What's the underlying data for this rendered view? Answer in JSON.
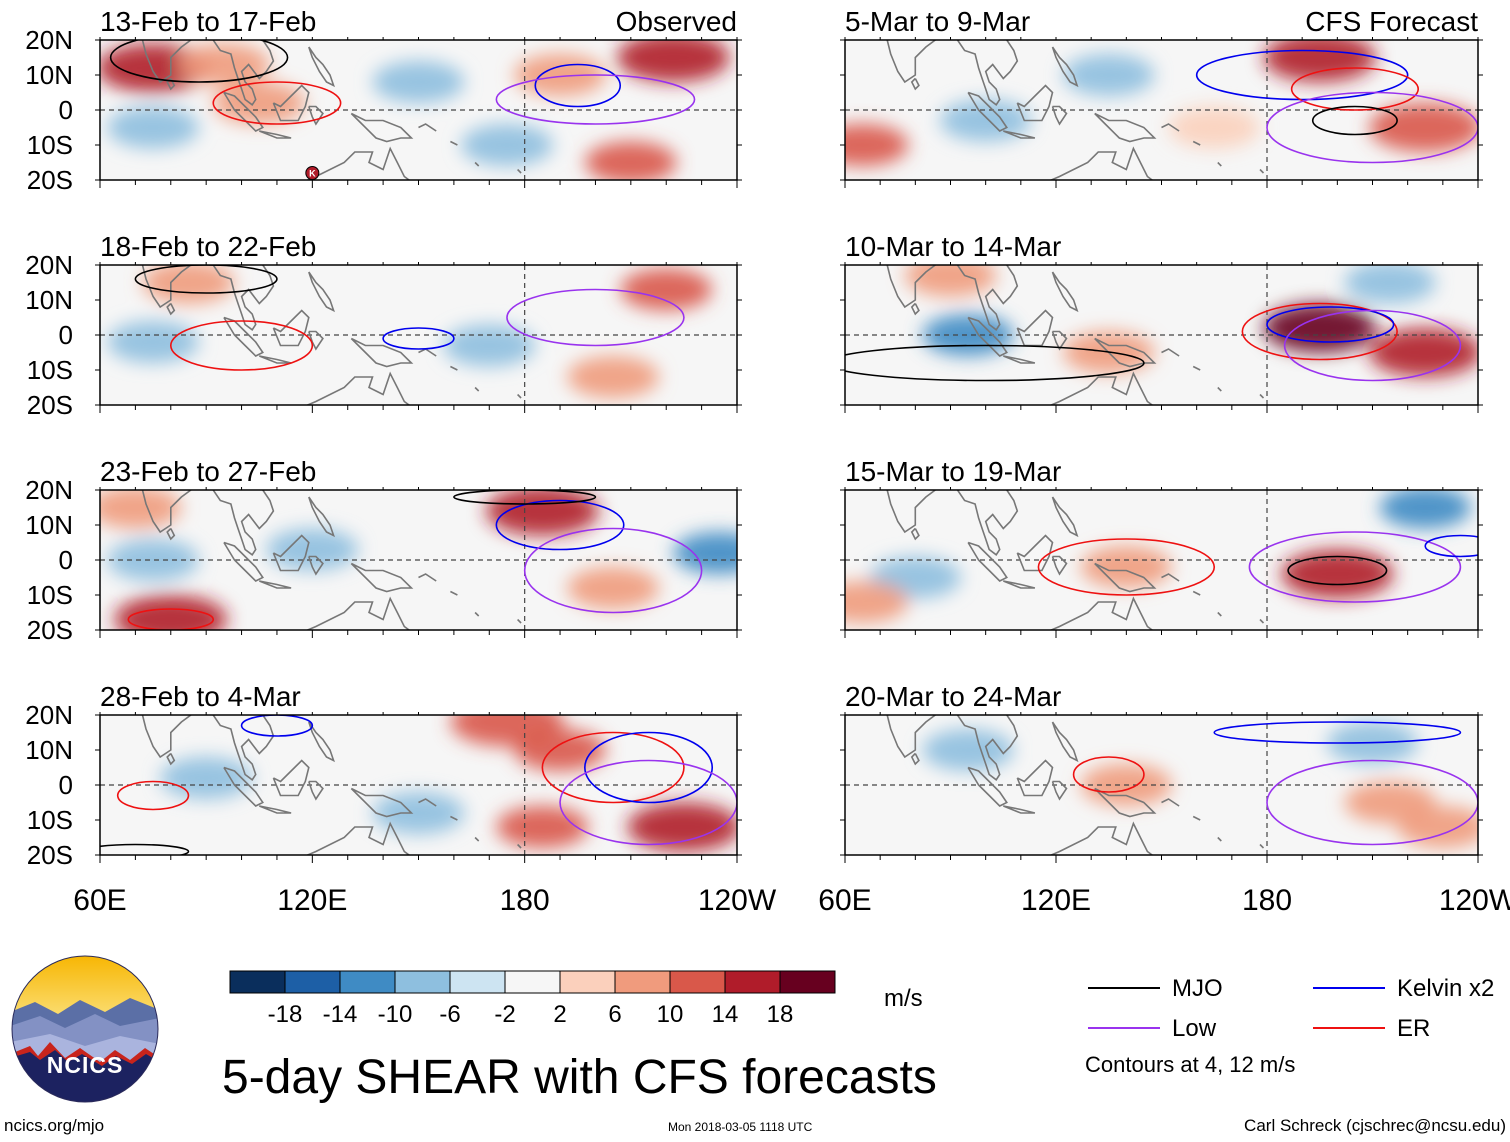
{
  "chart_data": [
    {
      "type": "heatmap",
      "panel": "observed-1",
      "title": "13-Feb to 17-Feb",
      "label": "Observed",
      "xlim": [
        "60E",
        "120W"
      ],
      "ylim": [
        "20S",
        "20N"
      ],
      "anomaly_blobs": [
        {
          "lon": 75,
          "lat": 12,
          "v": 16
        },
        {
          "lon": 95,
          "lat": 13,
          "v": 10
        },
        {
          "lon": 105,
          "lat": 2,
          "v": 10
        },
        {
          "lon": 190,
          "lat": 10,
          "v": 10
        },
        {
          "lon": 222,
          "lat": 15,
          "v": 18
        },
        {
          "lon": 75,
          "lat": -5,
          "v": -8
        },
        {
          "lon": 150,
          "lat": 8,
          "v": -6
        },
        {
          "lon": 175,
          "lat": -10,
          "v": -6
        },
        {
          "lon": 210,
          "lat": -15,
          "v": 12
        }
      ],
      "contours": [
        {
          "type": "MJO",
          "center": [
            88,
            15
          ],
          "r": [
            25,
            7
          ]
        },
        {
          "type": "ER",
          "center": [
            110,
            2
          ],
          "r": [
            18,
            6
          ]
        },
        {
          "type": "Kelvin",
          "center": [
            195,
            7
          ],
          "r": [
            12,
            6
          ]
        },
        {
          "type": "Low",
          "center": [
            200,
            3
          ],
          "r": [
            28,
            7
          ]
        }
      ]
    },
    {
      "type": "heatmap",
      "panel": "forecast-1",
      "title": "5-Mar to 9-Mar",
      "label": "CFS Forecast",
      "xlim": [
        "60E",
        "120W"
      ],
      "ylim": [
        "20S",
        "20N"
      ],
      "anomaly_blobs": [
        {
          "lon": 195,
          "lat": 15,
          "v": 16
        },
        {
          "lon": 225,
          "lat": -5,
          "v": 14
        },
        {
          "lon": 65,
          "lat": -10,
          "v": 12
        },
        {
          "lon": 135,
          "lat": 10,
          "v": -6
        },
        {
          "lon": 100,
          "lat": -3,
          "v": -8
        },
        {
          "lon": 165,
          "lat": -5,
          "v": 6
        }
      ],
      "contours": [
        {
          "type": "Kelvin",
          "center": [
            190,
            10
          ],
          "r": [
            30,
            7
          ]
        },
        {
          "type": "ER",
          "center": [
            205,
            6
          ],
          "r": [
            18,
            6
          ]
        },
        {
          "type": "MJO",
          "center": [
            205,
            -3
          ],
          "r": [
            12,
            4
          ]
        },
        {
          "type": "Low",
          "center": [
            210,
            -5
          ],
          "r": [
            30,
            10
          ]
        }
      ]
    },
    {
      "type": "heatmap",
      "panel": "observed-2",
      "title": "18-Feb to 22-Feb",
      "label": "",
      "xlim": [
        "60E",
        "120W"
      ],
      "ylim": [
        "20S",
        "20N"
      ],
      "anomaly_blobs": [
        {
          "lon": 85,
          "lat": 15,
          "v": 10
        },
        {
          "lon": 220,
          "lat": 13,
          "v": 12
        },
        {
          "lon": 75,
          "lat": -2,
          "v": -8
        },
        {
          "lon": 170,
          "lat": -3,
          "v": -8
        },
        {
          "lon": 205,
          "lat": -12,
          "v": 8
        }
      ],
      "contours": [
        {
          "type": "MJO",
          "center": [
            90,
            16
          ],
          "r": [
            20,
            4
          ]
        },
        {
          "type": "ER",
          "center": [
            100,
            -3
          ],
          "r": [
            20,
            7
          ]
        },
        {
          "type": "Kelvin",
          "center": [
            150,
            -1
          ],
          "r": [
            10,
            3
          ]
        },
        {
          "type": "Low",
          "center": [
            200,
            5
          ],
          "r": [
            25,
            8
          ]
        }
      ]
    },
    {
      "type": "heatmap",
      "panel": "forecast-2",
      "title": "10-Mar to 14-Mar",
      "label": "",
      "xlim": [
        "60E",
        "120W"
      ],
      "ylim": [
        "20S",
        "20N"
      ],
      "anomaly_blobs": [
        {
          "lon": 195,
          "lat": 2,
          "v": 20
        },
        {
          "lon": 225,
          "lat": -5,
          "v": 16
        },
        {
          "lon": 90,
          "lat": 17,
          "v": 10
        },
        {
          "lon": 95,
          "lat": 0,
          "v": -10
        },
        {
          "lon": 135,
          "lat": -5,
          "v": 8
        },
        {
          "lon": 215,
          "lat": 15,
          "v": -6
        }
      ],
      "contours": [
        {
          "type": "ER",
          "center": [
            195,
            1
          ],
          "r": [
            22,
            8
          ]
        },
        {
          "type": "Kelvin",
          "center": [
            198,
            3
          ],
          "r": [
            18,
            5
          ]
        },
        {
          "type": "MJO",
          "center": [
            100,
            -8
          ],
          "r": [
            45,
            5
          ]
        },
        {
          "type": "Low",
          "center": [
            210,
            -3
          ],
          "r": [
            25,
            10
          ]
        }
      ]
    },
    {
      "type": "heatmap",
      "panel": "observed-3",
      "title": "23-Feb to 27-Feb",
      "label": "",
      "xlim": [
        "60E",
        "120W"
      ],
      "ylim": [
        "20S",
        "20N"
      ],
      "anomaly_blobs": [
        {
          "lon": 185,
          "lat": 14,
          "v": 18
        },
        {
          "lon": 70,
          "lat": 15,
          "v": 10
        },
        {
          "lon": 80,
          "lat": -17,
          "v": 16
        },
        {
          "lon": 205,
          "lat": -8,
          "v": 10
        },
        {
          "lon": 75,
          "lat": 0,
          "v": -8
        },
        {
          "lon": 120,
          "lat": 3,
          "v": -6
        },
        {
          "lon": 235,
          "lat": 2,
          "v": -12
        }
      ],
      "contours": [
        {
          "type": "Kelvin",
          "center": [
            190,
            10
          ],
          "r": [
            18,
            7
          ]
        },
        {
          "type": "ER",
          "center": [
            80,
            -17
          ],
          "r": [
            12,
            3
          ]
        },
        {
          "type": "MJO",
          "center": [
            180,
            18
          ],
          "r": [
            20,
            2
          ]
        },
        {
          "type": "Low",
          "center": [
            205,
            -3
          ],
          "r": [
            25,
            12
          ]
        }
      ]
    },
    {
      "type": "heatmap",
      "panel": "forecast-3",
      "title": "15-Mar to 19-Mar",
      "label": "",
      "xlim": [
        "60E",
        "120W"
      ],
      "ylim": [
        "20S",
        "20N"
      ],
      "anomaly_blobs": [
        {
          "lon": 200,
          "lat": -4,
          "v": 16
        },
        {
          "lon": 140,
          "lat": -2,
          "v": 8
        },
        {
          "lon": 225,
          "lat": 15,
          "v": -10
        },
        {
          "lon": 80,
          "lat": -5,
          "v": -6
        },
        {
          "lon": 65,
          "lat": -12,
          "v": 10
        }
      ],
      "contours": [
        {
          "type": "ER",
          "center": [
            140,
            -2
          ],
          "r": [
            25,
            8
          ]
        },
        {
          "type": "MJO",
          "center": [
            200,
            -3
          ],
          "r": [
            14,
            4
          ]
        },
        {
          "type": "Low",
          "center": [
            205,
            -2
          ],
          "r": [
            30,
            10
          ]
        },
        {
          "type": "Kelvin",
          "center": [
            235,
            4
          ],
          "r": [
            10,
            3
          ]
        }
      ]
    },
    {
      "type": "heatmap",
      "panel": "observed-4",
      "title": "28-Feb to 4-Mar",
      "label": "",
      "xlim": [
        "60E",
        "120W"
      ],
      "ylim": [
        "20S",
        "20N"
      ],
      "anomaly_blobs": [
        {
          "lon": 225,
          "lat": -12,
          "v": 18
        },
        {
          "lon": 190,
          "lat": 10,
          "v": 12
        },
        {
          "lon": 185,
          "lat": -12,
          "v": 12
        },
        {
          "lon": 175,
          "lat": 18,
          "v": 14
        },
        {
          "lon": 90,
          "lat": 2,
          "v": -8
        },
        {
          "lon": 150,
          "lat": -8,
          "v": -6
        }
      ],
      "contours": [
        {
          "type": "ER",
          "center": [
            205,
            5
          ],
          "r": [
            20,
            10
          ]
        },
        {
          "type": "Kelvin",
          "center": [
            110,
            17
          ],
          "r": [
            10,
            3
          ]
        },
        {
          "type": "Kelvin",
          "center": [
            215,
            5
          ],
          "r": [
            18,
            10
          ]
        },
        {
          "type": "Low",
          "center": [
            215,
            -5
          ],
          "r": [
            25,
            12
          ]
        },
        {
          "type": "ER",
          "center": [
            75,
            -3
          ],
          "r": [
            10,
            4
          ]
        },
        {
          "type": "MJO",
          "center": [
            70,
            -19
          ],
          "r": [
            15,
            2
          ]
        }
      ]
    },
    {
      "type": "heatmap",
      "panel": "forecast-4",
      "title": "20-Mar to 24-Mar",
      "label": "",
      "xlim": [
        "60E",
        "120W"
      ],
      "ylim": [
        "20S",
        "20N"
      ],
      "anomaly_blobs": [
        {
          "lon": 140,
          "lat": 0,
          "v": 8
        },
        {
          "lon": 215,
          "lat": -5,
          "v": 10
        },
        {
          "lon": 230,
          "lat": -12,
          "v": 8
        },
        {
          "lon": 95,
          "lat": 10,
          "v": -6
        },
        {
          "lon": 210,
          "lat": 12,
          "v": -6
        }
      ],
      "contours": [
        {
          "type": "ER",
          "center": [
            135,
            3
          ],
          "r": [
            10,
            5
          ]
        },
        {
          "type": "Low",
          "center": [
            210,
            -5
          ],
          "r": [
            30,
            12
          ]
        },
        {
          "type": "Kelvin",
          "center": [
            200,
            15
          ],
          "r": [
            35,
            3
          ]
        }
      ]
    }
  ],
  "axes": {
    "x_ticks": [
      {
        "lon": 60,
        "label": "60E"
      },
      {
        "lon": 120,
        "label": "120E"
      },
      {
        "lon": 180,
        "label": "180"
      },
      {
        "lon": 240,
        "label": "120W"
      }
    ],
    "y_ticks": [
      {
        "lat": 20,
        "label": "20N"
      },
      {
        "lat": 10,
        "label": "10N"
      },
      {
        "lat": 0,
        "label": "0"
      },
      {
        "lat": -10,
        "label": "10S"
      },
      {
        "lat": -20,
        "label": "20S"
      }
    ]
  },
  "colorbar": {
    "labels": [
      "-18",
      "-14",
      "-10",
      "-6",
      "-2",
      "2",
      "6",
      "10",
      "14",
      "18"
    ],
    "colors": [
      "#0a2e5c",
      "#1d5fa6",
      "#3f8bc4",
      "#8ebfdf",
      "#cde4f2",
      "#f6f6f6",
      "#fbd0bc",
      "#f09b7d",
      "#d9584a",
      "#b01c2a",
      "#67001f"
    ],
    "units": "m/s"
  },
  "legend": {
    "items": [
      {
        "label": "MJO",
        "color": "#000000"
      },
      {
        "label": "Kelvin x2",
        "color": "#0000ee"
      },
      {
        "label": "Low",
        "color": "#9933ee"
      },
      {
        "label": "ER",
        "color": "#ee1111"
      }
    ],
    "note": "Contours at 4, 12 m/s"
  },
  "logo": {
    "text": "NCICS"
  },
  "title": "5-day SHEAR with CFS forecasts",
  "url": "ncics.org/mjo",
  "timestamp": "Mon 2018-03-05 1118 UTC",
  "author": "Carl Schreck (cjschrec@ncsu.edu)",
  "marker": "K",
  "colors": {
    "land": "#777777",
    "equator": "#444444"
  }
}
